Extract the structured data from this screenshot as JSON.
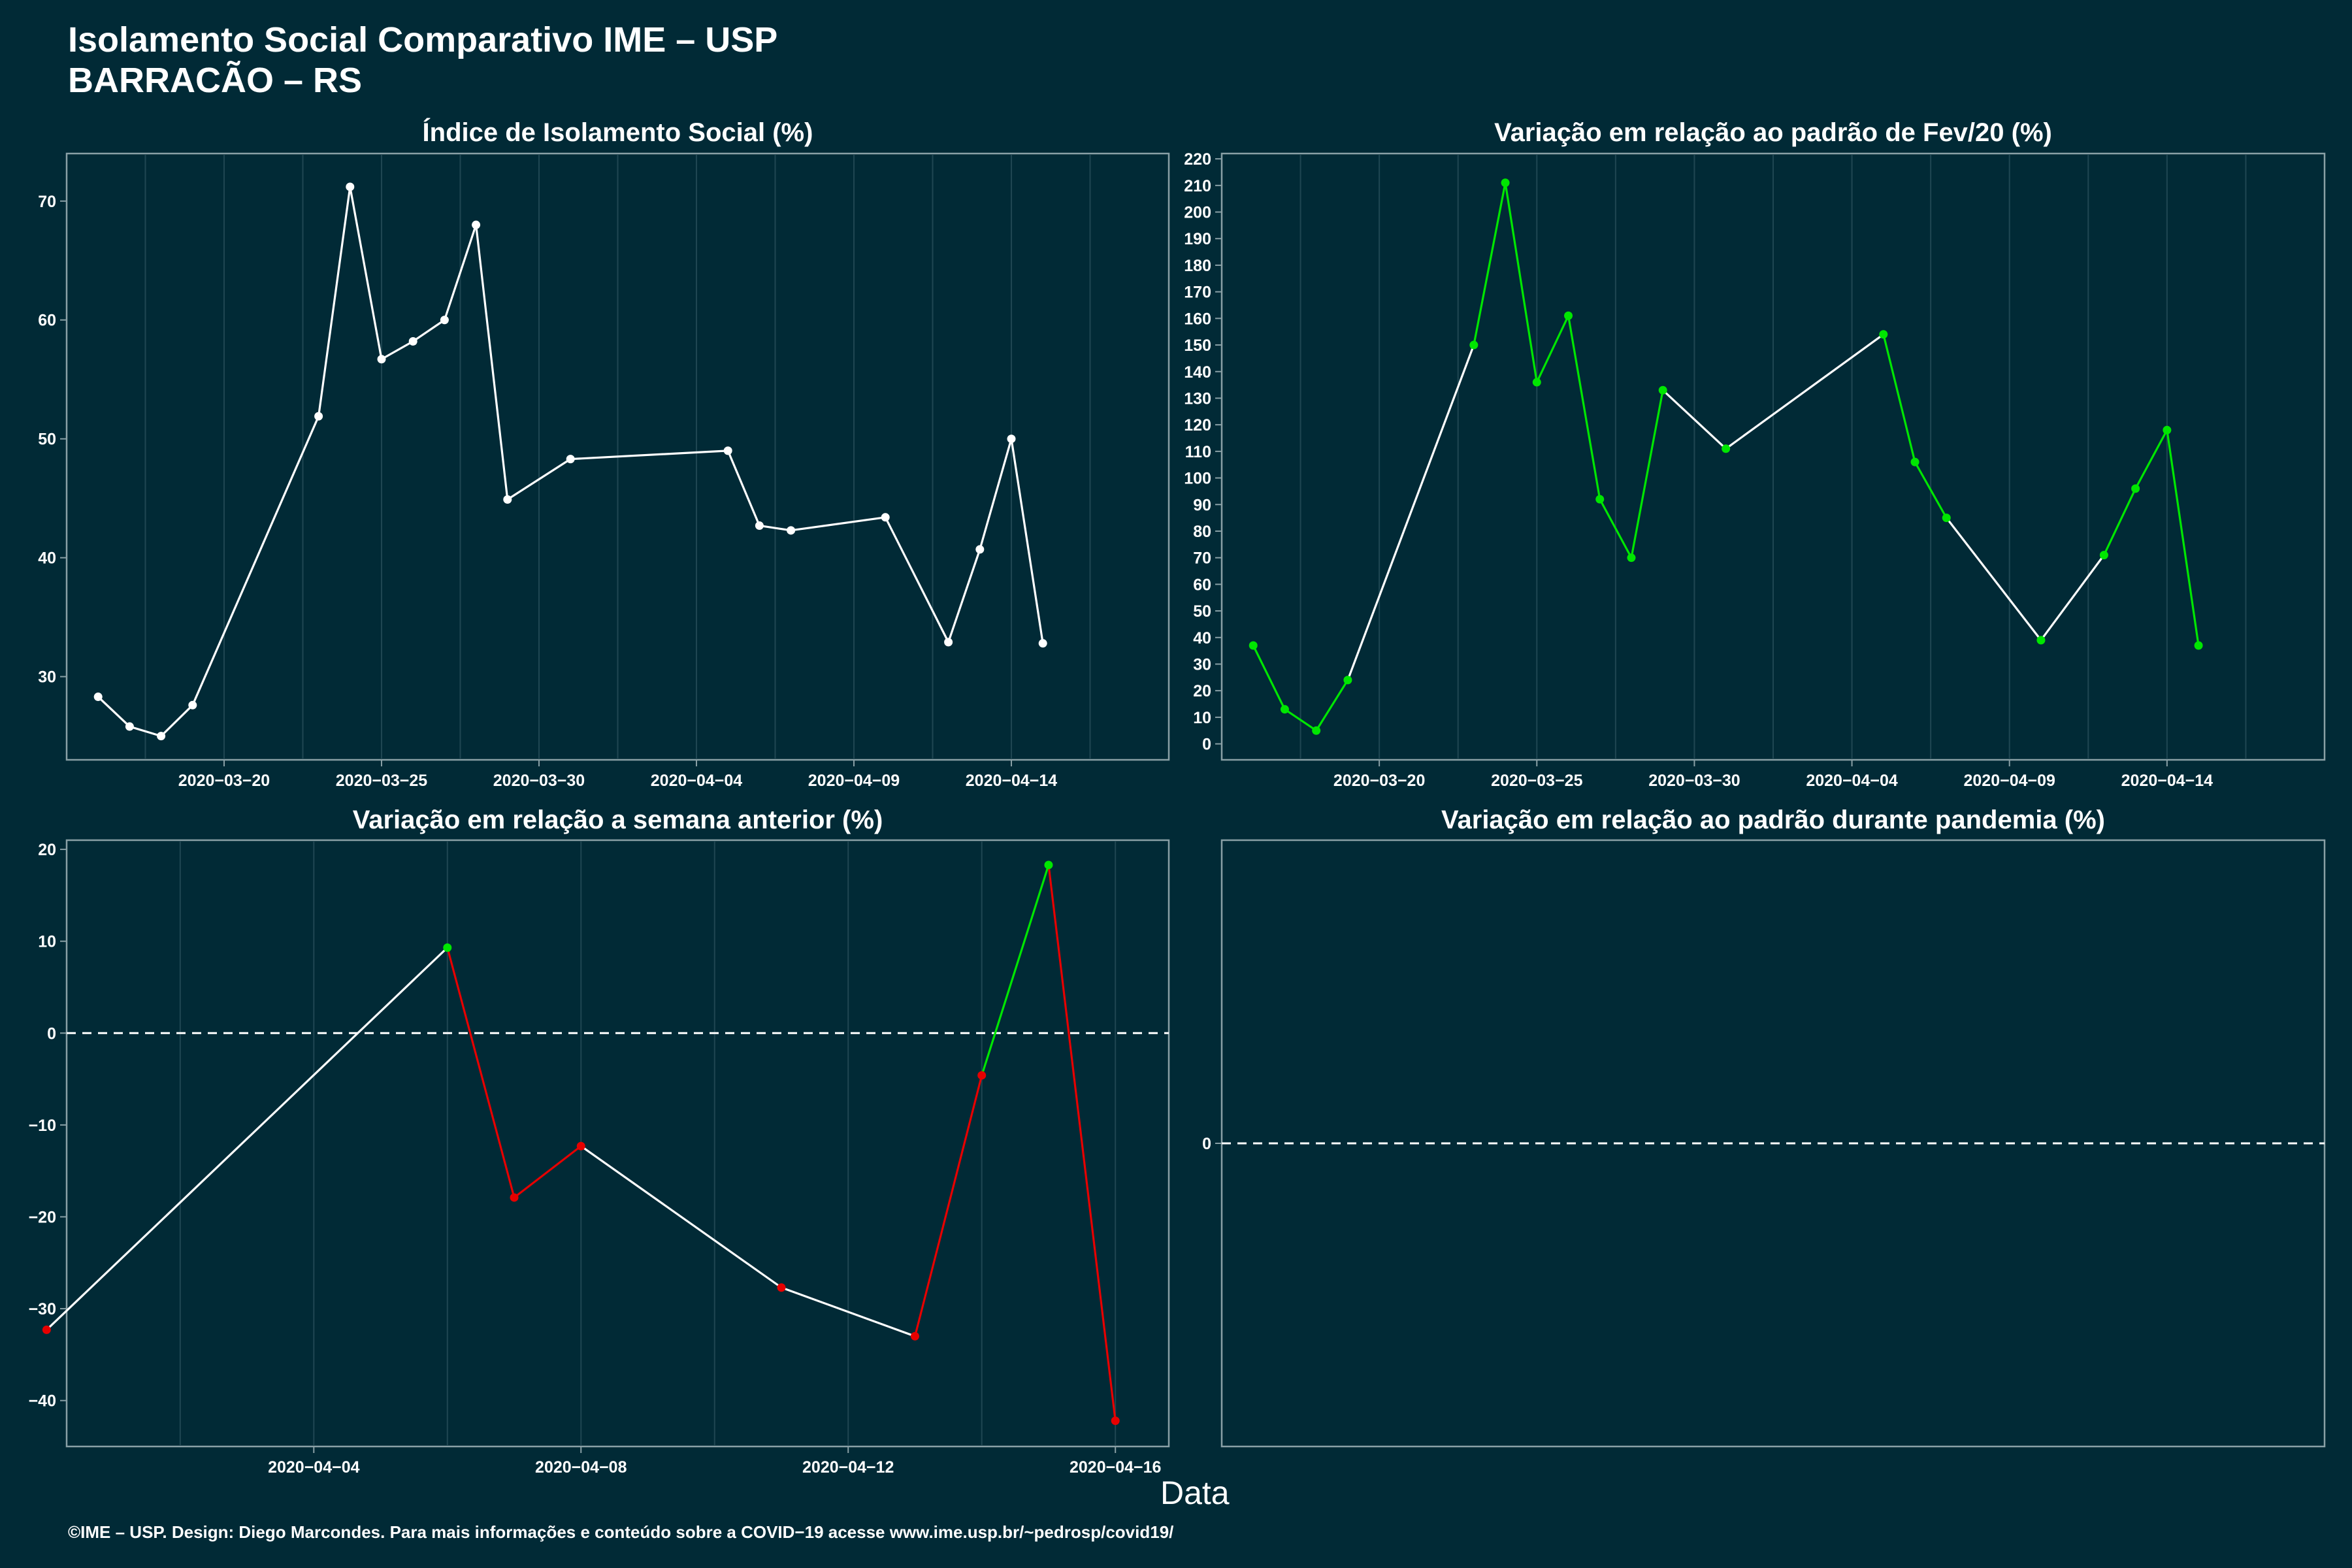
{
  "header": {
    "title": "Isolamento Social Comparativo IME – USP",
    "subtitle": "BARRACÃO – RS"
  },
  "footer": {
    "xlabel": "Data",
    "caption": "©IME – USP. Design: Diego Marcondes. Para mais informações e conteúdo sobre a COVID−19 acesse www.ime.usp.br/~pedrosp/covid19/"
  },
  "colors": {
    "background": "#012a36",
    "panel_border": "#8aa0a6",
    "grid": "#1f4652",
    "line_neutral": "#ffffff",
    "increase": "#00e600",
    "decrease": "#e60000"
  },
  "chart_data": [
    {
      "id": "isolation-index",
      "type": "line",
      "title": "Índice de Isolamento Social (%)",
      "xlim": [
        "2020-03-15",
        "2020-04-19"
      ],
      "ylim": [
        23,
        74
      ],
      "yticks": [
        30,
        40,
        50,
        60,
        70
      ],
      "xticks": [
        "2020−03−20",
        "2020−03−25",
        "2020−03−30",
        "2020−04−04",
        "2020−04−09",
        "2020−04−14"
      ],
      "x": [
        "2020-03-16",
        "2020-03-17",
        "2020-03-18",
        "2020-03-19",
        "2020-03-23",
        "2020-03-24",
        "2020-03-25",
        "2020-03-26",
        "2020-03-27",
        "2020-03-28",
        "2020-03-29",
        "2020-03-31",
        "2020-04-05",
        "2020-04-06",
        "2020-04-07",
        "2020-04-10",
        "2020-04-12",
        "2020-04-13",
        "2020-04-14",
        "2020-04-15"
      ],
      "y": [
        28.3,
        25.8,
        25.0,
        27.6,
        51.9,
        71.2,
        56.7,
        58.2,
        60.0,
        68.0,
        44.9,
        48.3,
        49.0,
        42.7,
        42.3,
        43.4,
        32.9,
        40.7,
        50.0,
        32.8
      ],
      "point_color": [
        "#ffffff",
        "#ffffff",
        "#ffffff",
        "#ffffff",
        "#ffffff",
        "#ffffff",
        "#ffffff",
        "#ffffff",
        "#ffffff",
        "#ffffff",
        "#ffffff",
        "#ffffff",
        "#ffffff",
        "#ffffff",
        "#ffffff",
        "#ffffff",
        "#ffffff",
        "#ffffff",
        "#ffffff",
        "#ffffff"
      ],
      "segment_color": [
        "#ffffff",
        "#ffffff",
        "#ffffff",
        "#ffffff",
        "#ffffff",
        "#ffffff",
        "#ffffff",
        "#ffffff",
        "#ffffff",
        "#ffffff",
        "#ffffff",
        "#ffffff",
        "#ffffff",
        "#ffffff",
        "#ffffff",
        "#ffffff",
        "#ffffff",
        "#ffffff",
        "#ffffff"
      ]
    },
    {
      "id": "variation-feb",
      "type": "line",
      "title": "Variação em relação ao padrão de Fev/20 (%)",
      "xlim": [
        "2020-03-15",
        "2020-04-19"
      ],
      "ylim": [
        -6,
        222
      ],
      "yticks": [
        0,
        10,
        20,
        30,
        40,
        50,
        60,
        70,
        80,
        90,
        100,
        110,
        120,
        130,
        140,
        150,
        160,
        170,
        180,
        190,
        200,
        210,
        220
      ],
      "xticks": [
        "2020−03−20",
        "2020−03−25",
        "2020−03−30",
        "2020−04−04",
        "2020−04−09",
        "2020−04−14"
      ],
      "x": [
        "2020-03-16",
        "2020-03-17",
        "2020-03-18",
        "2020-03-19",
        "2020-03-23",
        "2020-03-24",
        "2020-03-25",
        "2020-03-26",
        "2020-03-27",
        "2020-03-28",
        "2020-03-29",
        "2020-03-31",
        "2020-04-05",
        "2020-04-06",
        "2020-04-07",
        "2020-04-10",
        "2020-04-12",
        "2020-04-13",
        "2020-04-14",
        "2020-04-15"
      ],
      "y": [
        37,
        13,
        5,
        24,
        150,
        211,
        136,
        161,
        92,
        70,
        133,
        111,
        154,
        106,
        85,
        39,
        71,
        96,
        118,
        37
      ],
      "point_color": [
        "#00e600",
        "#00e600",
        "#00e600",
        "#00e600",
        "#00e600",
        "#00e600",
        "#00e600",
        "#00e600",
        "#00e600",
        "#00e600",
        "#00e600",
        "#00e600",
        "#00e600",
        "#00e600",
        "#00e600",
        "#00e600",
        "#00e600",
        "#00e600",
        "#00e600",
        "#00e600"
      ],
      "segment_color": [
        "#00e600",
        "#00e600",
        "#00e600",
        "#ffffff",
        "#00e600",
        "#00e600",
        "#00e600",
        "#00e600",
        "#00e600",
        "#00e600",
        "#ffffff",
        "#ffffff",
        "#00e600",
        "#00e600",
        "#ffffff",
        "#ffffff",
        "#00e600",
        "#00e600",
        "#00e600"
      ]
    },
    {
      "id": "variation-previous-week",
      "type": "line",
      "title": "Variação em relação a semana anterior (%)",
      "xlim": [
        "2020-03-31.3",
        "2020-04-16.8"
      ],
      "ylim": [
        -45,
        21
      ],
      "yticks": [
        -40,
        -30,
        -20,
        -10,
        0,
        10,
        20
      ],
      "ytick_labels": [
        "−40",
        "−30",
        "−20",
        "−10",
        "0",
        "10",
        "20"
      ],
      "xticks": [
        "2020−04−04",
        "2020−04−08",
        "2020−04−12",
        "2020−04−16"
      ],
      "x": [
        "2020-03-31",
        "2020-04-06",
        "2020-04-07",
        "2020-04-08",
        "2020-04-11",
        "2020-04-13",
        "2020-04-14",
        "2020-04-15",
        "2020-04-16"
      ],
      "y": [
        -32.3,
        9.3,
        -17.9,
        -12.3,
        -27.7,
        -33.0,
        -4.6,
        18.3,
        -42.2
      ],
      "point_color": [
        "#e60000",
        "#00e600",
        "#e60000",
        "#e60000",
        "#e60000",
        "#e60000",
        "#e60000",
        "#00e600",
        "#e60000"
      ],
      "segment_color": [
        "#ffffff",
        "#e60000",
        "#e60000",
        "#ffffff",
        "#ffffff",
        "#e60000",
        "#00e600",
        "#e60000"
      ],
      "reference_line": 0
    },
    {
      "id": "variation-pandemic",
      "type": "line",
      "title": "Variação em relação ao padrão durante pandemia (%)",
      "yticks": [
        0
      ],
      "x": [],
      "y": [],
      "reference_line": 0
    }
  ]
}
